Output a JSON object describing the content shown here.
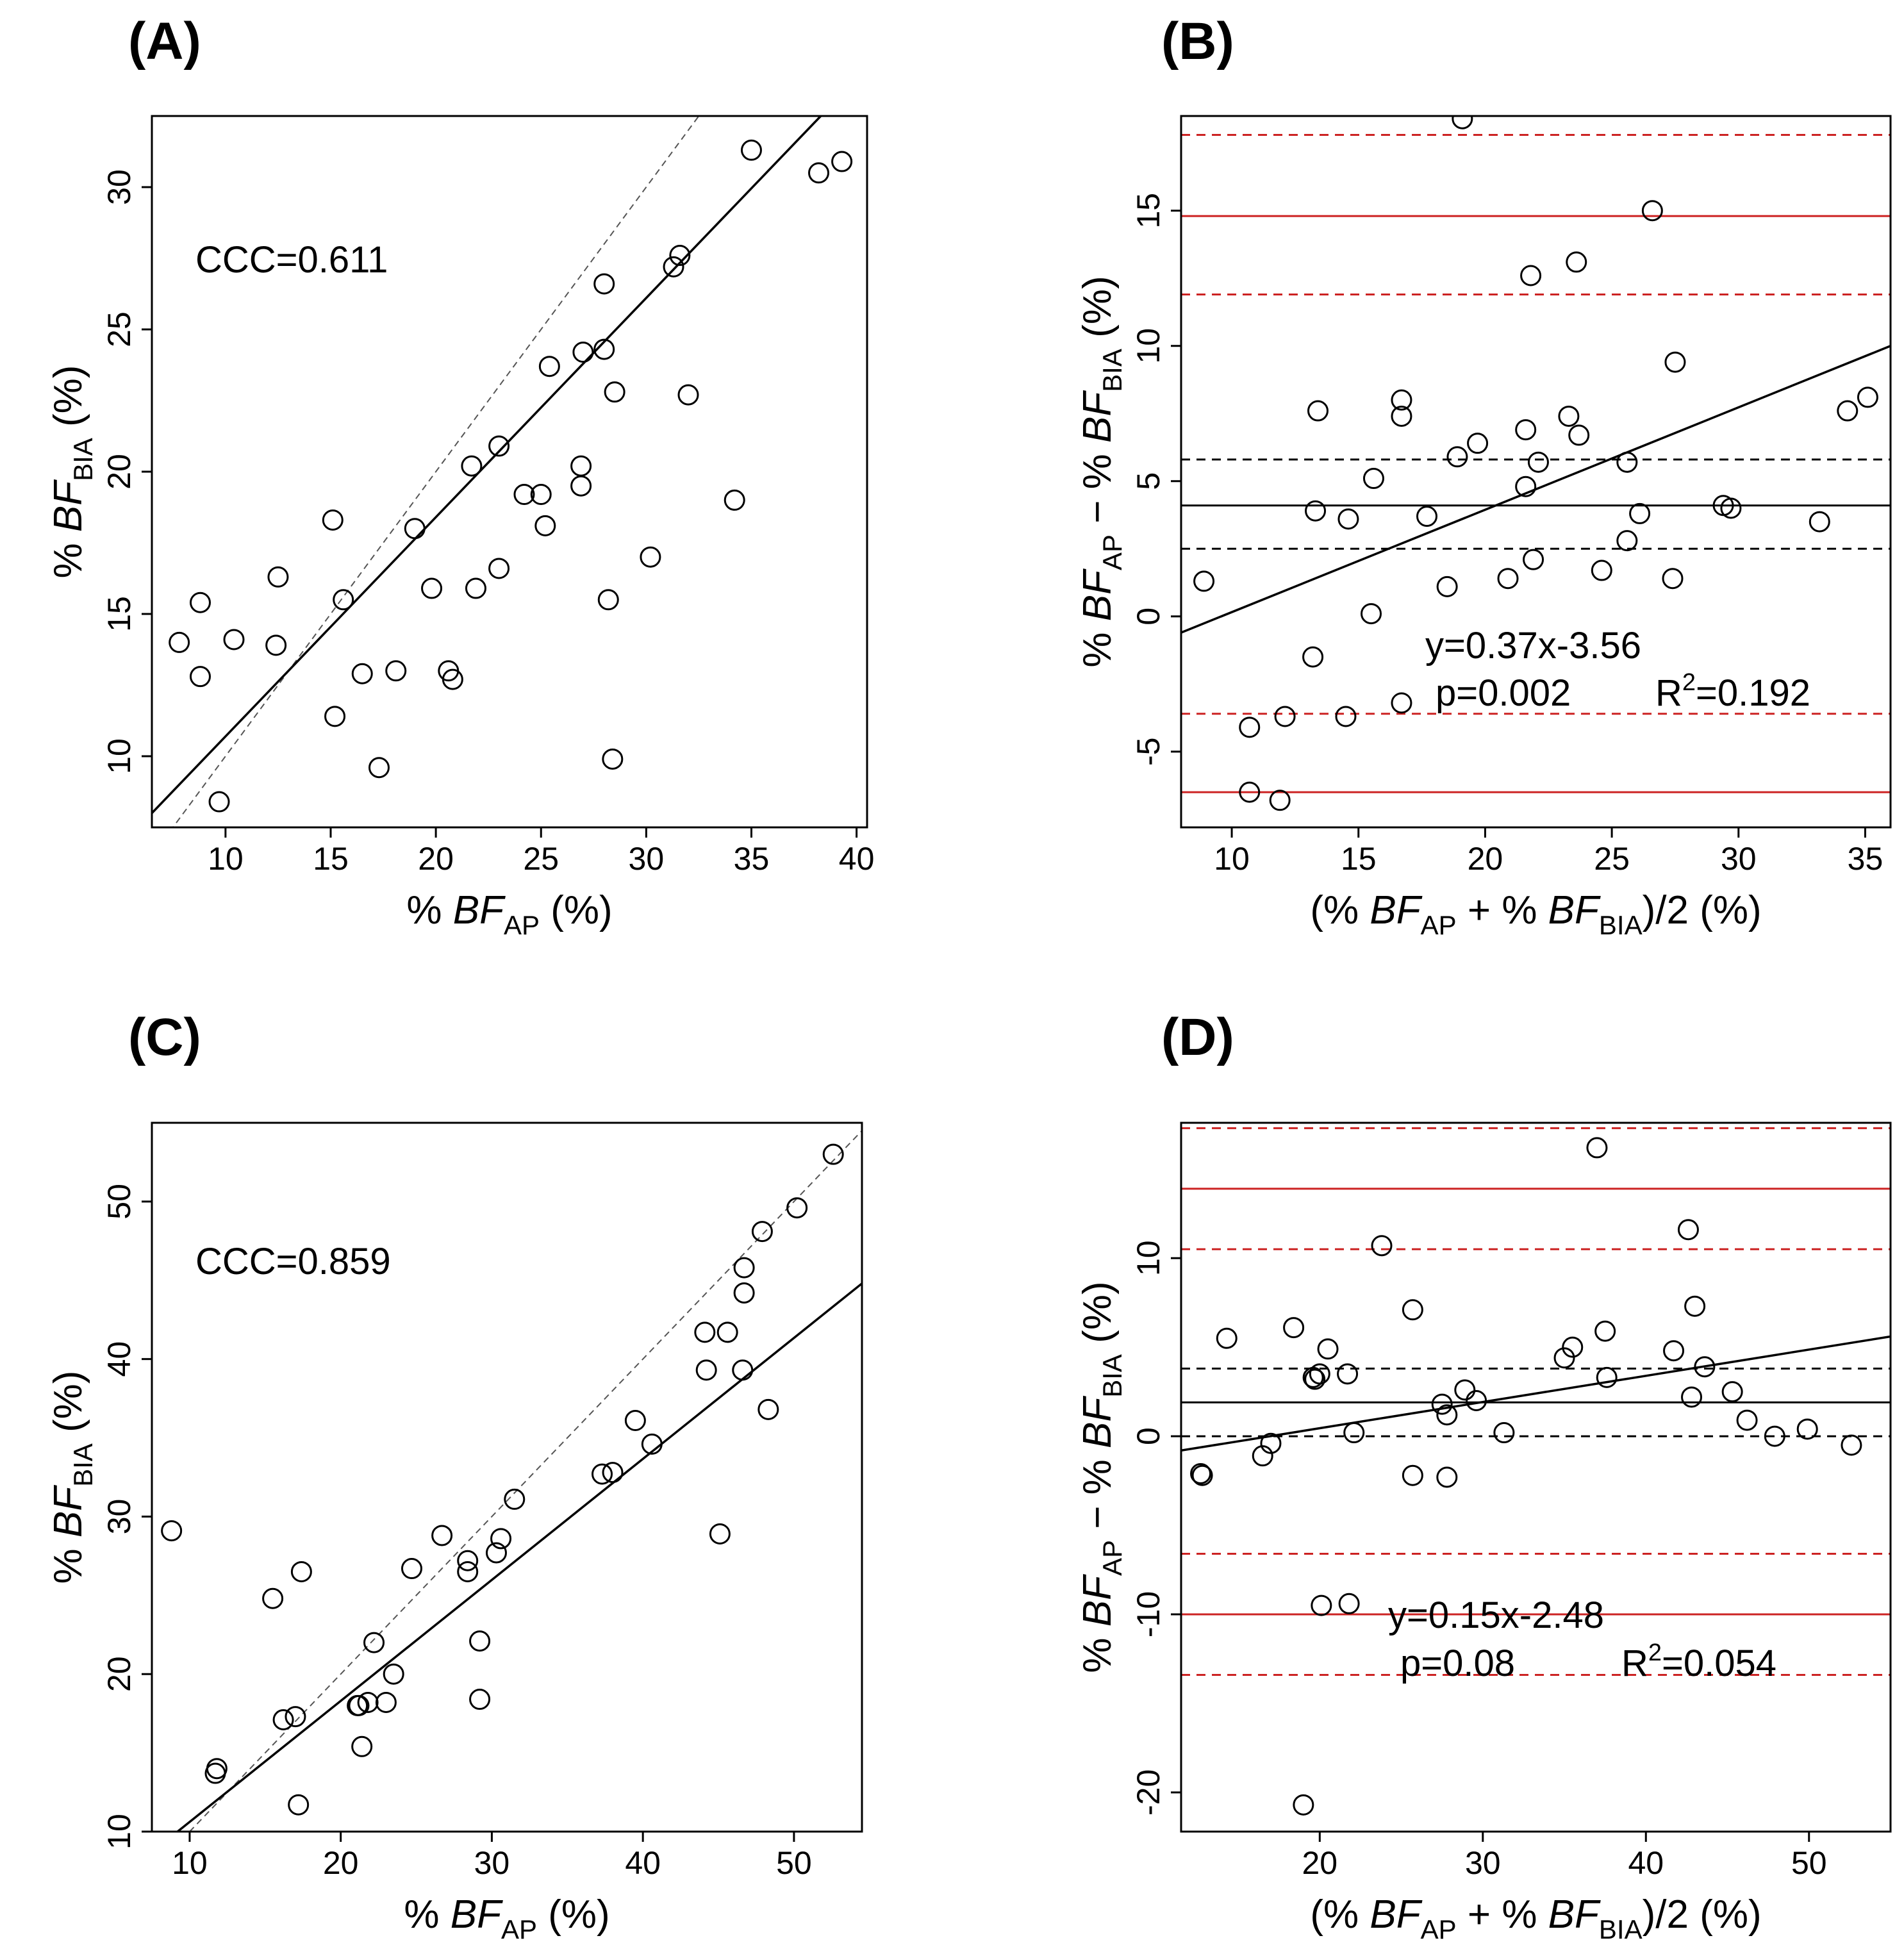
{
  "colors": {
    "ink": "#000000",
    "limits": "#cc2222",
    "identity": "#555555",
    "background": "#ffffff"
  },
  "chart_data": [
    {
      "id": "A",
      "type": "scatter",
      "panel_label": "(A)",
      "xlabel": {
        "prefix": "% ",
        "var": "BF",
        "sub": "AP",
        "suffix": " (%)"
      },
      "ylabel": {
        "prefix": "% ",
        "var": "BF",
        "sub": "BIA",
        "suffix": " (%)"
      },
      "xlim": [
        6.5,
        40.5
      ],
      "ylim": [
        7.5,
        32.5
      ],
      "xticks": [
        10,
        15,
        20,
        25,
        30,
        35,
        40
      ],
      "yticks": [
        10,
        15,
        20,
        25,
        30
      ],
      "annotation": "CCC=0.611",
      "identity_line": true,
      "fit_line": [
        [
          6.5,
          8.0
        ],
        [
          38.3,
          32.5
        ]
      ],
      "points": [
        [
          7.8,
          14.0
        ],
        [
          8.8,
          12.8
        ],
        [
          8.8,
          15.4
        ],
        [
          9.7,
          8.4
        ],
        [
          10.4,
          14.1
        ],
        [
          12.4,
          13.9
        ],
        [
          12.5,
          16.3
        ],
        [
          15.1,
          18.3
        ],
        [
          15.2,
          11.4
        ],
        [
          15.6,
          15.5
        ],
        [
          16.5,
          12.9
        ],
        [
          17.3,
          9.6
        ],
        [
          18.1,
          13.0
        ],
        [
          19.0,
          18.0
        ],
        [
          19.8,
          15.9
        ],
        [
          20.6,
          13.0
        ],
        [
          20.8,
          12.7
        ],
        [
          21.7,
          20.2
        ],
        [
          21.9,
          15.9
        ],
        [
          23.0,
          20.9
        ],
        [
          23.0,
          16.6
        ],
        [
          24.2,
          19.2
        ],
        [
          25.0,
          19.2
        ],
        [
          25.2,
          18.1
        ],
        [
          25.4,
          23.7
        ],
        [
          26.9,
          20.2
        ],
        [
          26.9,
          19.5
        ],
        [
          27.0,
          24.2
        ],
        [
          28.0,
          24.3
        ],
        [
          28.0,
          26.6
        ],
        [
          28.2,
          15.5
        ],
        [
          28.4,
          9.9
        ],
        [
          28.5,
          22.8
        ],
        [
          30.2,
          17.0
        ],
        [
          31.3,
          27.2
        ],
        [
          31.6,
          27.6
        ],
        [
          32.0,
          22.7
        ],
        [
          34.2,
          19.0
        ],
        [
          35.0,
          31.3
        ],
        [
          38.2,
          30.5
        ],
        [
          39.3,
          30.9
        ]
      ]
    },
    {
      "id": "B",
      "type": "scatter",
      "panel_label": "(B)",
      "xlabel": {
        "mean": true,
        "prefix": "(% ",
        "var1": "BF",
        "sub1": "AP",
        "mid": " + % ",
        "var2": "BF",
        "sub2": "BIA",
        "suffix": ")/2 (%)"
      },
      "ylabel": {
        "diff": true,
        "prefix": "% ",
        "var1": "BF",
        "sub1": "AP",
        "mid": " − % ",
        "var2": "BF",
        "sub2": "BIA",
        "suffix": " (%)"
      },
      "xlim": [
        8.0,
        36.0
      ],
      "ylim": [
        -7.8,
        18.5
      ],
      "xticks": [
        10,
        15,
        20,
        25,
        30,
        35
      ],
      "yticks": [
        -5,
        0,
        5,
        10,
        15
      ],
      "hlines": [
        {
          "y": 17.8,
          "style": "dashed",
          "color": "red"
        },
        {
          "y": 14.8,
          "style": "solid",
          "color": "red"
        },
        {
          "y": 11.9,
          "style": "dashed",
          "color": "red"
        },
        {
          "y": 5.8,
          "style": "dashed",
          "color": "black"
        },
        {
          "y": 4.1,
          "style": "solid",
          "color": "black"
        },
        {
          "y": 2.5,
          "style": "dashed",
          "color": "black"
        },
        {
          "y": -3.6,
          "style": "dashed",
          "color": "red"
        },
        {
          "y": -6.5,
          "style": "solid",
          "color": "red"
        }
      ],
      "fit_line": [
        [
          8.0,
          -0.6
        ],
        [
          36.0,
          10.0
        ]
      ],
      "equation": "y=0.37x-3.56",
      "p_text": "p=0.002",
      "r2_prefix": "R",
      "r2_sup": "2",
      "r2_value": "=0.192",
      "points": [
        [
          8.9,
          1.3
        ],
        [
          10.7,
          -4.1
        ],
        [
          10.7,
          -6.5
        ],
        [
          11.9,
          -6.8
        ],
        [
          12.1,
          -3.7
        ],
        [
          13.2,
          -1.5
        ],
        [
          13.3,
          3.9
        ],
        [
          13.4,
          7.6
        ],
        [
          14.5,
          -3.7
        ],
        [
          14.6,
          3.6
        ],
        [
          15.5,
          0.1
        ],
        [
          15.6,
          5.1
        ],
        [
          16.7,
          7.4
        ],
        [
          16.7,
          8.0
        ],
        [
          16.7,
          -3.2
        ],
        [
          17.7,
          3.7
        ],
        [
          18.5,
          1.1
        ],
        [
          18.9,
          5.9
        ],
        [
          19.1,
          18.4
        ],
        [
          19.7,
          6.4
        ],
        [
          20.9,
          1.4
        ],
        [
          21.6,
          4.8
        ],
        [
          21.6,
          6.9
        ],
        [
          21.8,
          12.6
        ],
        [
          21.9,
          2.1
        ],
        [
          22.1,
          5.7
        ],
        [
          23.3,
          7.4
        ],
        [
          23.6,
          13.1
        ],
        [
          23.7,
          6.7
        ],
        [
          24.6,
          1.7
        ],
        [
          25.6,
          2.8
        ],
        [
          25.6,
          5.7
        ],
        [
          26.1,
          3.8
        ],
        [
          26.6,
          15.0
        ],
        [
          27.4,
          1.4
        ],
        [
          27.5,
          9.4
        ],
        [
          29.4,
          4.1
        ],
        [
          29.7,
          4.0
        ],
        [
          33.2,
          3.5
        ],
        [
          34.3,
          7.6
        ],
        [
          35.1,
          8.1
        ]
      ]
    },
    {
      "id": "C",
      "type": "scatter",
      "panel_label": "(C)",
      "xlabel": {
        "prefix": "% ",
        "var": "BF",
        "sub": "AP",
        "suffix": " (%)"
      },
      "ylabel": {
        "prefix": "% ",
        "var": "BF",
        "sub": "BIA",
        "suffix": " (%)"
      },
      "xlim": [
        7.5,
        54.5
      ],
      "ylim": [
        10.0,
        55.0
      ],
      "xticks": [
        10,
        20,
        30,
        40,
        50
      ],
      "yticks": [
        10,
        20,
        30,
        40,
        50
      ],
      "annotation": "CCC=0.859",
      "identity_line": true,
      "fit_line": [
        [
          9.2,
          10.0
        ],
        [
          54.5,
          44.8
        ]
      ],
      "points": [
        [
          8.8,
          29.1
        ],
        [
          11.7,
          13.7
        ],
        [
          11.8,
          14.0
        ],
        [
          15.5,
          24.8
        ],
        [
          16.2,
          17.1
        ],
        [
          17.0,
          17.3
        ],
        [
          17.2,
          11.7
        ],
        [
          17.4,
          26.5
        ],
        [
          21.1,
          18.0
        ],
        [
          21.2,
          18.0
        ],
        [
          21.4,
          15.4
        ],
        [
          21.8,
          18.2
        ],
        [
          22.2,
          22.0
        ],
        [
          23.0,
          18.2
        ],
        [
          23.5,
          20.0
        ],
        [
          24.7,
          26.7
        ],
        [
          26.7,
          28.8
        ],
        [
          28.4,
          27.2
        ],
        [
          28.4,
          26.5
        ],
        [
          29.2,
          22.1
        ],
        [
          29.2,
          18.4
        ],
        [
          30.3,
          27.7
        ],
        [
          30.6,
          28.6
        ],
        [
          31.5,
          31.1
        ],
        [
          37.3,
          32.7
        ],
        [
          38.0,
          32.8
        ],
        [
          39.5,
          36.1
        ],
        [
          40.6,
          34.6
        ],
        [
          44.1,
          41.7
        ],
        [
          44.2,
          39.3
        ],
        [
          45.1,
          28.9
        ],
        [
          45.6,
          41.7
        ],
        [
          46.6,
          39.3
        ],
        [
          46.7,
          45.8
        ],
        [
          46.7,
          44.2
        ],
        [
          47.9,
          48.1
        ],
        [
          48.3,
          36.8
        ],
        [
          50.2,
          49.6
        ],
        [
          52.6,
          53.0
        ]
      ]
    },
    {
      "id": "D",
      "type": "scatter",
      "panel_label": "(D)",
      "xlabel": {
        "mean": true,
        "prefix": "(% ",
        "var1": "BF",
        "sub1": "AP",
        "mid": " + % ",
        "var2": "BF",
        "sub2": "BIA",
        "suffix": ")/2 (%)"
      },
      "ylabel": {
        "diff": true,
        "prefix": "% ",
        "var1": "BF",
        "sub1": "AP",
        "mid": " − % ",
        "var2": "BF",
        "sub2": "BIA",
        "suffix": " (%)"
      },
      "xlim": [
        11.5,
        55.0
      ],
      "ylim": [
        -22.2,
        17.6
      ],
      "xticks": [
        20,
        30,
        40,
        50
      ],
      "yticks": [
        -20,
        -10,
        0,
        10
      ],
      "hlines": [
        {
          "y": 17.3,
          "style": "dashed",
          "color": "red"
        },
        {
          "y": 13.9,
          "style": "solid",
          "color": "red"
        },
        {
          "y": 10.5,
          "style": "dashed",
          "color": "red"
        },
        {
          "y": 3.8,
          "style": "dashed",
          "color": "black"
        },
        {
          "y": 1.9,
          "style": "solid",
          "color": "black"
        },
        {
          "y": 0.0,
          "style": "dashed",
          "color": "black"
        },
        {
          "y": -6.6,
          "style": "dashed",
          "color": "red"
        },
        {
          "y": -10.0,
          "style": "solid",
          "color": "red"
        },
        {
          "y": -13.4,
          "style": "dashed",
          "color": "red"
        }
      ],
      "fit_line": [
        [
          11.5,
          -0.8
        ],
        [
          55.0,
          5.6
        ]
      ],
      "equation": "y=0.15x-2.48",
      "p_text": "p=0.08",
      "r2_prefix": "R",
      "r2_sup": "2",
      "r2_value": "=0.054",
      "points": [
        [
          12.7,
          -2.1
        ],
        [
          12.8,
          -2.2
        ],
        [
          14.3,
          5.5
        ],
        [
          16.5,
          -1.1
        ],
        [
          17.0,
          -0.4
        ],
        [
          18.4,
          6.1
        ],
        [
          19.0,
          -20.7
        ],
        [
          19.6,
          3.3
        ],
        [
          19.7,
          3.2
        ],
        [
          20.0,
          3.5
        ],
        [
          20.1,
          -9.5
        ],
        [
          20.5,
          4.9
        ],
        [
          21.7,
          3.5
        ],
        [
          21.8,
          -9.4
        ],
        [
          22.1,
          0.2
        ],
        [
          23.8,
          10.7
        ],
        [
          25.7,
          7.1
        ],
        [
          25.7,
          -2.2
        ],
        [
          27.5,
          1.8
        ],
        [
          27.8,
          -2.3
        ],
        [
          27.8,
          1.2
        ],
        [
          28.9,
          2.6
        ],
        [
          29.6,
          2.0
        ],
        [
          31.3,
          0.2
        ],
        [
          35.0,
          4.4
        ],
        [
          35.5,
          5.0
        ],
        [
          37.0,
          16.2
        ],
        [
          37.5,
          5.9
        ],
        [
          37.6,
          3.3
        ],
        [
          41.7,
          4.8
        ],
        [
          42.6,
          11.6
        ],
        [
          42.8,
          2.2
        ],
        [
          43.0,
          7.3
        ],
        [
          43.6,
          3.9
        ],
        [
          45.3,
          2.5
        ],
        [
          46.2,
          0.9
        ],
        [
          47.9,
          0.0
        ],
        [
          49.9,
          0.4
        ],
        [
          52.6,
          -0.5
        ]
      ]
    }
  ]
}
